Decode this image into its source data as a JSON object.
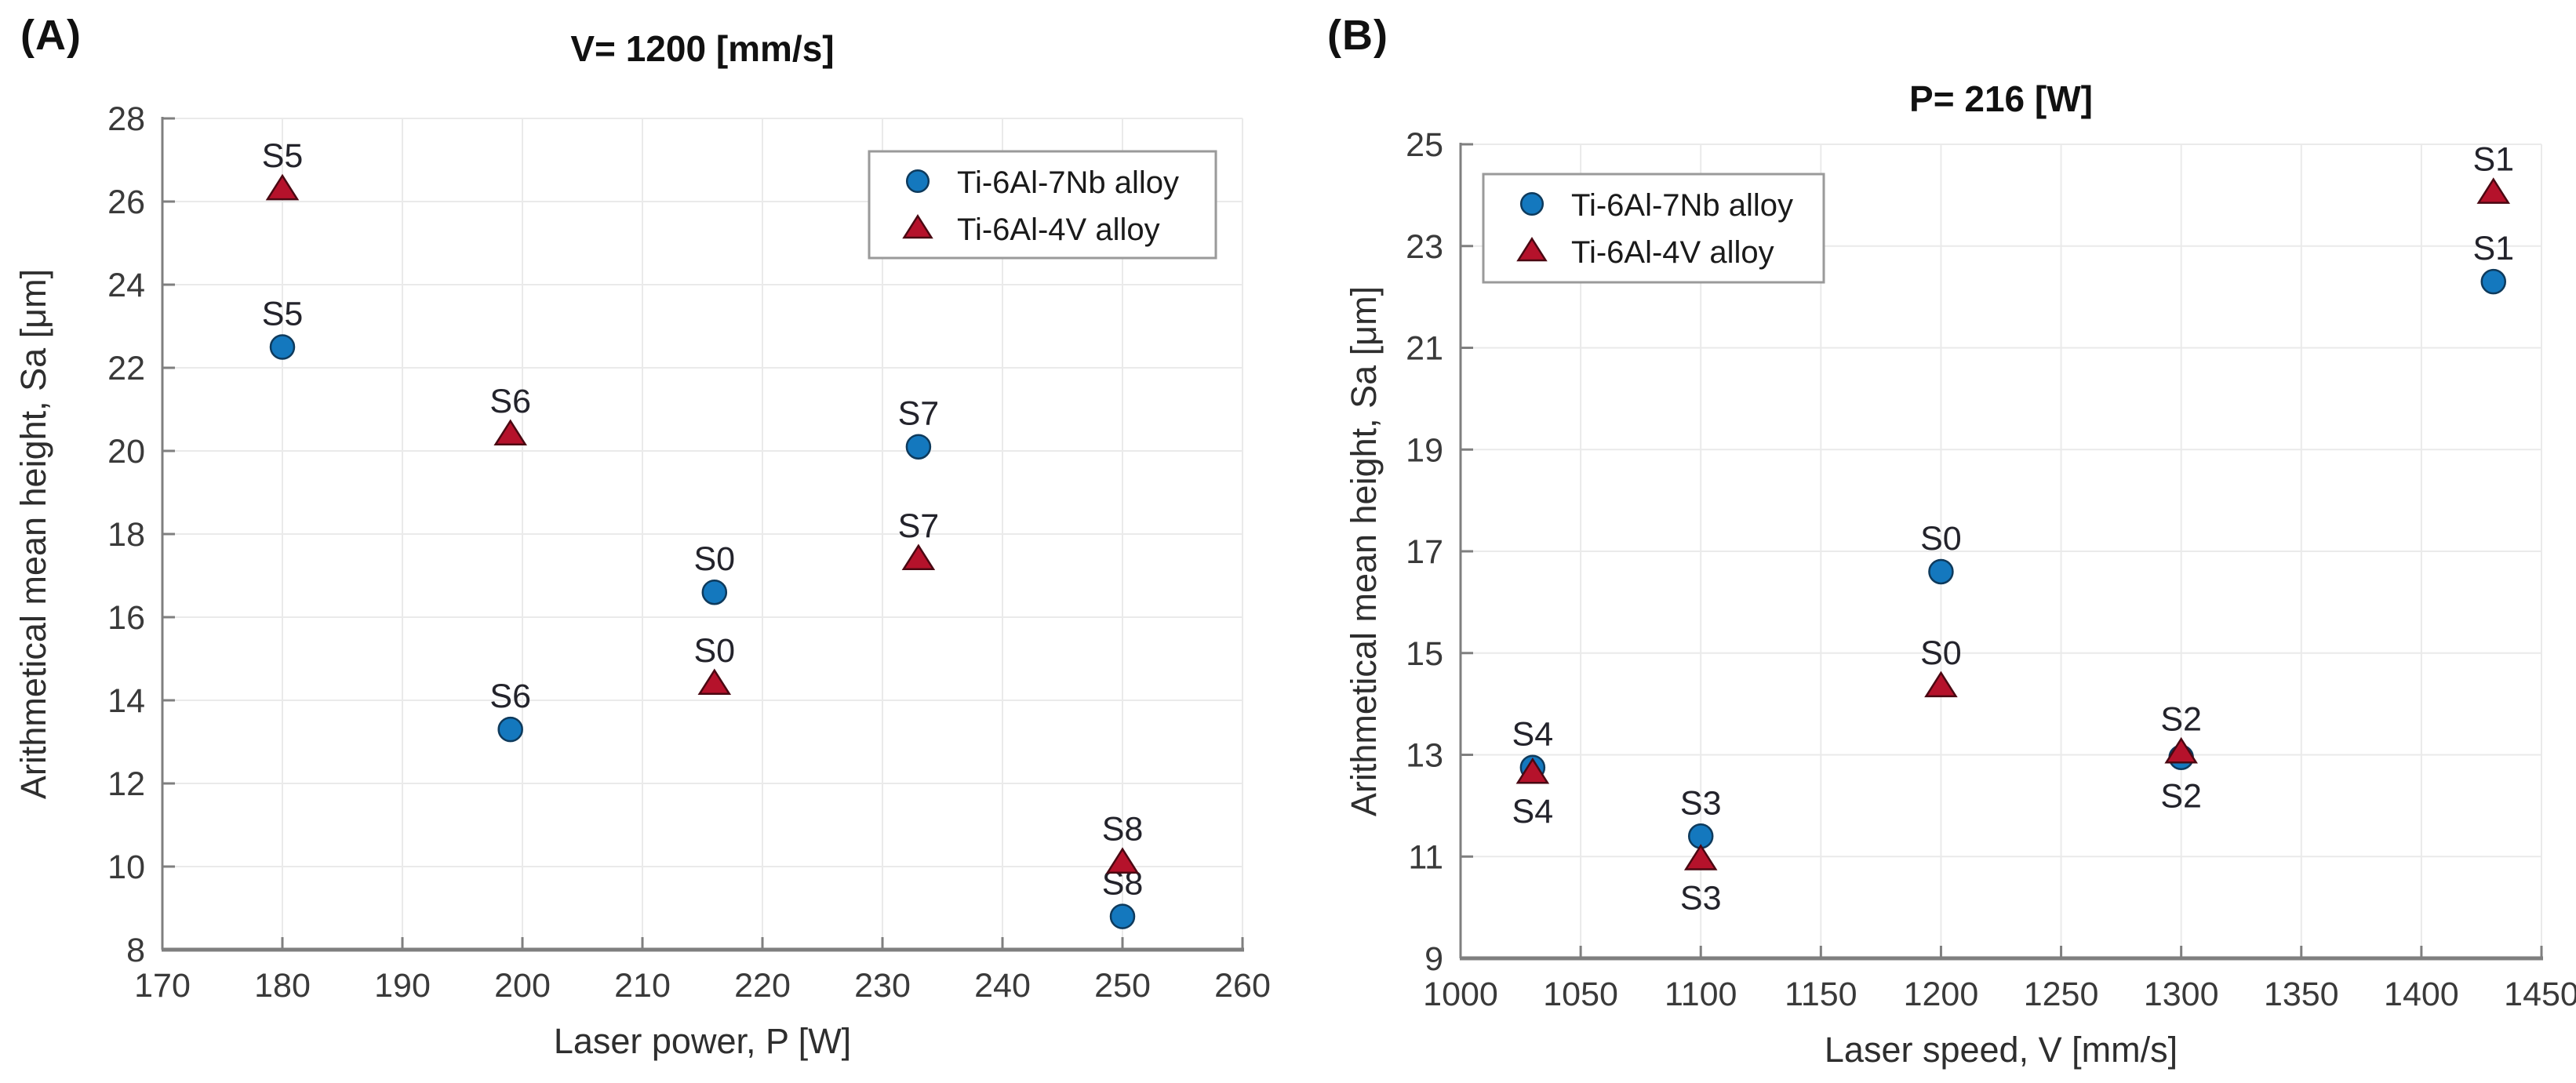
{
  "figure": {
    "panels": [
      {
        "corner_label": "(A)"
      },
      {
        "corner_label": "(B)"
      }
    ],
    "colors": {
      "circle_fill": "#1478BE",
      "circle_edge": "#0E3A5C",
      "triangle_fill": "#B5122B",
      "triangle_edge": "#4A0812",
      "grid": "#EAEAEA",
      "axis": "#7F7F7F",
      "title_text": "#111111",
      "tick_text": "#3A3A3A",
      "axis_label_text": "#2E2E2E",
      "point_label_text": "#23232B",
      "legend_border": "#9A9A9A",
      "legend_text": "#1A1A1A"
    }
  },
  "chart_data": [
    {
      "type": "scatter",
      "title": "V= 1200 [mm/s]",
      "xlabel": "Laser power, P [W]",
      "ylabel": "Arithmetical mean height, Sa [μm]",
      "xlim": [
        170,
        260
      ],
      "ylim": [
        8,
        28
      ],
      "xticks": [
        170,
        180,
        190,
        200,
        210,
        220,
        230,
        240,
        250,
        260
      ],
      "yticks": [
        8,
        10,
        12,
        14,
        16,
        18,
        20,
        22,
        24,
        26,
        28
      ],
      "grid": true,
      "legend_position": "top-right",
      "series": [
        {
          "name": "Ti-6Al-7Nb alloy",
          "marker": "circle",
          "points": [
            {
              "label": "S5",
              "x": 180,
              "y": 22.5,
              "label_pos": "above"
            },
            {
              "label": "S6",
              "x": 199,
              "y": 13.3,
              "label_pos": "above"
            },
            {
              "label": "S0",
              "x": 216,
              "y": 16.6,
              "label_pos": "above"
            },
            {
              "label": "S7",
              "x": 233,
              "y": 20.1,
              "label_pos": "above"
            },
            {
              "label": "S8",
              "x": 250,
              "y": 8.8,
              "label_pos": "above"
            }
          ]
        },
        {
          "name": "Ti-6Al-4V alloy",
          "marker": "triangle",
          "points": [
            {
              "label": "S5",
              "x": 180,
              "y": 26.3,
              "label_pos": "above"
            },
            {
              "label": "S6",
              "x": 199,
              "y": 20.4,
              "label_pos": "above"
            },
            {
              "label": "S0",
              "x": 216,
              "y": 14.4,
              "label_pos": "above"
            },
            {
              "label": "S7",
              "x": 233,
              "y": 17.4,
              "label_pos": "above"
            },
            {
              "label": "S8",
              "x": 250,
              "y": 10.1,
              "label_pos": "above"
            }
          ]
        }
      ]
    },
    {
      "type": "scatter",
      "title": "P= 216 [W]",
      "xlabel": "Laser speed, V [mm/s]",
      "ylabel": "Arithmetical mean height, Sa [μm]",
      "xlim": [
        1000,
        1450
      ],
      "ylim": [
        9,
        25
      ],
      "xticks": [
        1000,
        1050,
        1100,
        1150,
        1200,
        1250,
        1300,
        1350,
        1400,
        1450
      ],
      "yticks": [
        9,
        11,
        13,
        15,
        17,
        19,
        21,
        23,
        25
      ],
      "grid": true,
      "legend_position": "top-left",
      "series": [
        {
          "name": "Ti-6Al-7Nb alloy",
          "marker": "circle",
          "points": [
            {
              "label": "S4",
              "x": 1030,
              "y": 12.75,
              "label_pos": "above"
            },
            {
              "label": "S3",
              "x": 1100,
              "y": 11.4,
              "label_pos": "above"
            },
            {
              "label": "S0",
              "x": 1200,
              "y": 16.6,
              "label_pos": "above"
            },
            {
              "label": "S2",
              "x": 1300,
              "y": 12.95,
              "label_pos": "below"
            },
            {
              "label": "S1",
              "x": 1430,
              "y": 22.3,
              "label_pos": "above"
            }
          ]
        },
        {
          "name": "Ti-6Al-4V alloy",
          "marker": "triangle",
          "points": [
            {
              "label": "S4",
              "x": 1030,
              "y": 12.65,
              "label_pos": "below"
            },
            {
              "label": "S3",
              "x": 1100,
              "y": 10.95,
              "label_pos": "below"
            },
            {
              "label": "S0",
              "x": 1200,
              "y": 14.35,
              "label_pos": "above"
            },
            {
              "label": "S2",
              "x": 1300,
              "y": 13.05,
              "label_pos": "above"
            },
            {
              "label": "S1",
              "x": 1430,
              "y": 24.05,
              "label_pos": "above"
            }
          ]
        }
      ]
    }
  ]
}
